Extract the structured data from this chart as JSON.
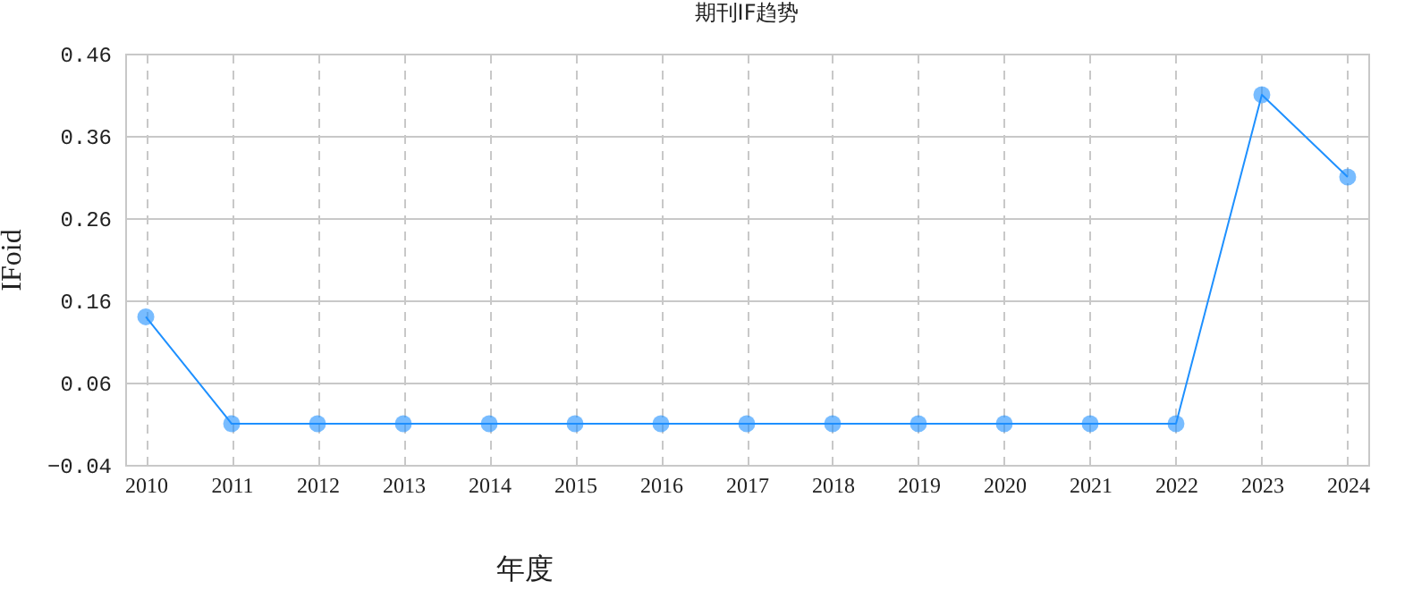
{
  "chart_data": {
    "type": "line",
    "title": "期刊IF趋势",
    "xlabel": "年度",
    "ylabel": "IFoid",
    "categories": [
      "2010",
      "2011",
      "2012",
      "2013",
      "2014",
      "2015",
      "2016",
      "2017",
      "2018",
      "2019",
      "2020",
      "2021",
      "2022",
      "2023",
      "2024"
    ],
    "series": [
      {
        "color": "#1e90ff",
        "values": [
          0.14,
          0.01,
          0.01,
          0.01,
          0.01,
          0.01,
          0.01,
          0.01,
          0.01,
          0.01,
          0.01,
          0.01,
          0.01,
          0.41,
          0.31
        ]
      }
    ],
    "ylim": [
      -0.04,
      0.46
    ],
    "yticks": [
      -0.04,
      0.06,
      0.16,
      0.26,
      0.36,
      0.46
    ],
    "grid": true,
    "marker": "circle",
    "line_style": "solid"
  }
}
